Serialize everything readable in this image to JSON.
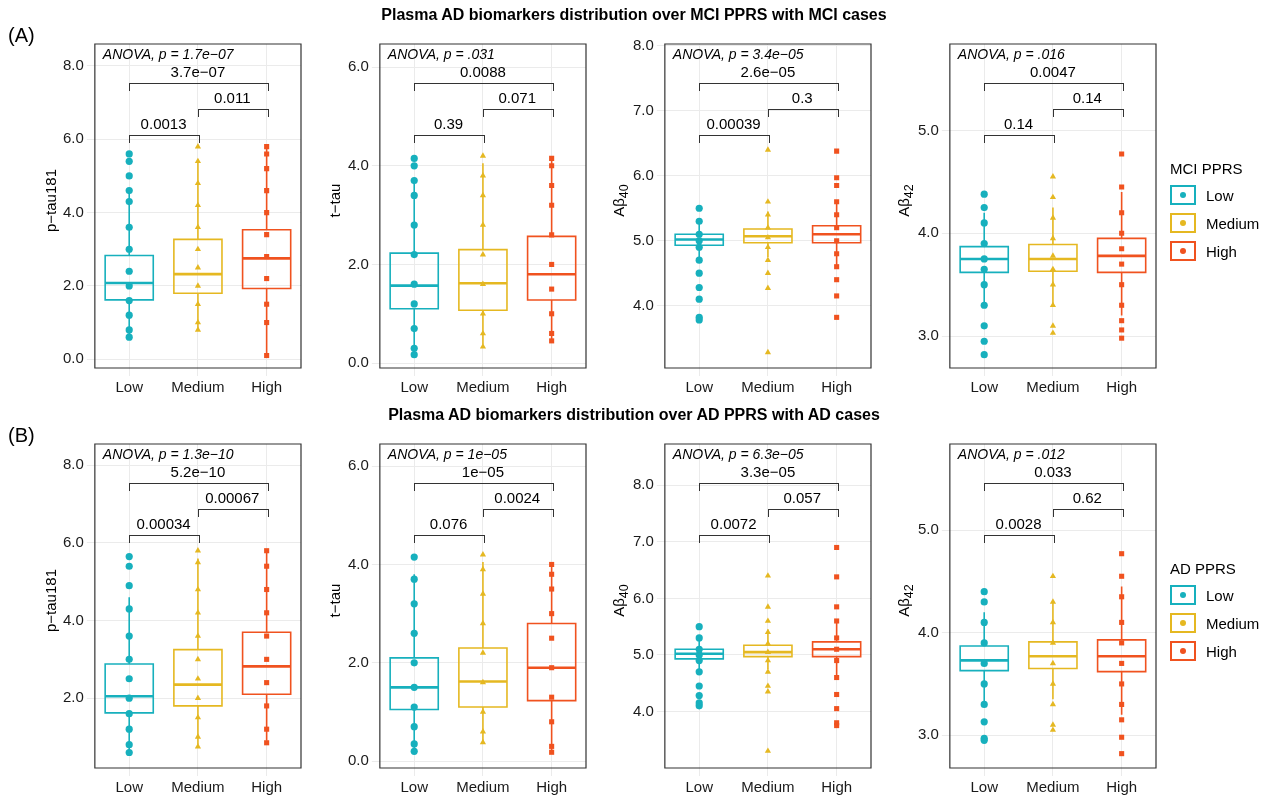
{
  "chart_data": [
    {
      "type": "box",
      "subtitle": "(A)",
      "ylabel": "p−tau181",
      "categories": [
        "Low",
        "Medium",
        "High"
      ],
      "ylim": [
        -0.24,
        8.6
      ],
      "yticks": [
        {
          "value": 0,
          "label": "0.0"
        },
        {
          "value": 2,
          "label": "2.0"
        },
        {
          "value": 4,
          "label": "4.0"
        },
        {
          "value": 6,
          "label": "6.0"
        },
        {
          "value": 8,
          "label": "8.0"
        }
      ],
      "grid": true,
      "colors": [
        "#17b0bd",
        "#e5b821",
        "#f0521f"
      ],
      "boxes": [
        {
          "low": 0.6,
          "q1": 1.62,
          "median": 2.08,
          "q3": 2.83,
          "high": 4.6
        },
        {
          "low": 0.8,
          "q1": 1.8,
          "median": 2.32,
          "q3": 3.27,
          "high": 5.4
        },
        {
          "low": 0.1,
          "q1": 1.93,
          "median": 2.75,
          "q3": 3.53,
          "high": 5.8
        }
      ],
      "series": [
        {
          "type": "scatter",
          "color": "#17b0bd",
          "marker": "circle",
          "x": [
            "Low",
            "Low",
            "Low",
            "Low",
            "Low",
            "Low",
            "Low",
            "Low",
            "Low",
            "Low",
            "Low",
            "Low",
            "Low"
          ],
          "values": [
            0.6,
            0.8,
            1.2,
            1.6,
            2.0,
            2.4,
            3.0,
            3.6,
            4.3,
            4.6,
            5.0,
            5.4,
            5.6
          ]
        },
        {
          "type": "scatter",
          "color": "#e5b821",
          "marker": "triangle",
          "x": [
            "Medium",
            "Medium",
            "Medium",
            "Medium",
            "Medium",
            "Medium",
            "Medium",
            "Medium",
            "Medium",
            "Medium",
            "Medium"
          ],
          "values": [
            0.8,
            1.0,
            1.5,
            2.0,
            2.5,
            3.0,
            3.6,
            4.2,
            4.8,
            5.4,
            5.8
          ]
        },
        {
          "type": "scatter",
          "color": "#f0521f",
          "marker": "square",
          "x": [
            "High",
            "High",
            "High",
            "High",
            "High",
            "High",
            "High",
            "High",
            "High",
            "High",
            "High"
          ],
          "values": [
            0.1,
            1.0,
            1.5,
            2.2,
            2.8,
            3.4,
            4.0,
            4.6,
            5.2,
            5.6,
            5.8
          ]
        }
      ],
      "annotations": [
        "ANOVA, p = 1.7e−07",
        "0.0013",
        "0.011",
        "3.7e−07"
      ]
    },
    {
      "type": "box",
      "ylabel": "t−tau",
      "categories": [
        "Low",
        "Medium",
        "High"
      ],
      "ylim": [
        -0.1,
        6.47
      ],
      "yticks": [
        {
          "value": 0,
          "label": "0.0"
        },
        {
          "value": 2,
          "label": "2.0"
        },
        {
          "value": 4,
          "label": "4.0"
        },
        {
          "value": 6,
          "label": "6.0"
        }
      ],
      "grid": true,
      "colors": [
        "#17b0bd",
        "#e5b821",
        "#f0521f"
      ],
      "boxes": [
        {
          "low": 0.17,
          "q1": 1.1,
          "median": 1.57,
          "q3": 2.23,
          "high": 3.75
        },
        {
          "low": 0.37,
          "q1": 1.07,
          "median": 1.62,
          "q3": 2.3,
          "high": 4.05
        },
        {
          "low": 0.45,
          "q1": 1.28,
          "median": 1.8,
          "q3": 2.57,
          "high": 4.1
        }
      ],
      "series": [
        {
          "type": "scatter",
          "color": "#17b0bd",
          "marker": "circle",
          "x": [
            "Low",
            "Low",
            "Low",
            "Low",
            "Low",
            "Low",
            "Low",
            "Low",
            "Low",
            "Low",
            "Low"
          ],
          "values": [
            0.17,
            0.3,
            0.7,
            1.2,
            1.6,
            2.2,
            2.8,
            3.4,
            3.7,
            4.0,
            4.15
          ]
        },
        {
          "type": "scatter",
          "color": "#e5b821",
          "marker": "triangle",
          "x": [
            "Medium",
            "Medium",
            "Medium",
            "Medium",
            "Medium",
            "Medium",
            "Medium",
            "Medium",
            "Medium"
          ],
          "values": [
            0.33,
            0.6,
            1.0,
            1.6,
            2.2,
            2.8,
            3.4,
            3.8,
            4.2
          ]
        },
        {
          "type": "scatter",
          "color": "#f0521f",
          "marker": "square",
          "x": [
            "High",
            "High",
            "High",
            "High",
            "High",
            "High",
            "High",
            "High",
            "High",
            "High"
          ],
          "values": [
            0.45,
            0.6,
            1.0,
            1.5,
            2.0,
            2.6,
            3.2,
            3.6,
            4.0,
            4.15
          ]
        }
      ],
      "annotations": [
        "ANOVA, p = .031",
        "0.39",
        "0.071",
        "0.0088"
      ]
    },
    {
      "type": "box",
      "title": "Plasma AD biomarkers distribution over MCI PPRS with MCI cases",
      "ylabel": "Aβ$_{40}$",
      "categories": [
        "Low",
        "Medium",
        "High"
      ],
      "ylim": [
        3.04,
        8.03
      ],
      "yticks": [
        {
          "value": 4,
          "label": "4.0"
        },
        {
          "value": 5,
          "label": "5.0"
        },
        {
          "value": 6,
          "label": "6.0"
        },
        {
          "value": 7,
          "label": "7.0"
        },
        {
          "value": 8,
          "label": "8.0"
        }
      ],
      "grid": true,
      "colors": [
        "#17b0bd",
        "#e5b821",
        "#f0521f"
      ],
      "boxes": [
        {
          "low": 4.7,
          "q1": 4.93,
          "median": 5.02,
          "q3": 5.1,
          "high": 5.35
        },
        {
          "low": 4.75,
          "q1": 4.97,
          "median": 5.07,
          "q3": 5.18,
          "high": 5.45
        },
        {
          "low": 4.6,
          "q1": 4.97,
          "median": 5.1,
          "q3": 5.23,
          "high": 5.6
        }
      ],
      "series": [
        {
          "type": "scatter",
          "color": "#17b0bd",
          "marker": "circle",
          "x": [
            "Low",
            "Low",
            "Low",
            "Low",
            "Low",
            "Low",
            "Low",
            "Low",
            "Low",
            "Low",
            "Low"
          ],
          "values": [
            3.78,
            3.82,
            4.1,
            4.28,
            4.5,
            4.7,
            4.9,
            5.0,
            5.1,
            5.3,
            5.5
          ]
        },
        {
          "type": "scatter",
          "color": "#e5b821",
          "marker": "triangle",
          "x": [
            "Medium",
            "Medium",
            "Medium",
            "Medium",
            "Medium",
            "Medium",
            "Medium",
            "Medium",
            "Medium",
            "Medium"
          ],
          "values": [
            3.28,
            4.27,
            4.5,
            4.7,
            4.9,
            5.05,
            5.2,
            5.4,
            5.6,
            6.4
          ]
        },
        {
          "type": "scatter",
          "color": "#f0521f",
          "marker": "square",
          "x": [
            "High",
            "High",
            "High",
            "High",
            "High",
            "High",
            "High",
            "High",
            "High",
            "High",
            "High",
            "High"
          ],
          "values": [
            3.82,
            4.15,
            4.4,
            4.6,
            4.8,
            5.0,
            5.2,
            5.4,
            5.6,
            5.85,
            5.97,
            6.38
          ]
        }
      ],
      "annotations": [
        "ANOVA, p = 3.4e−05",
        "0.00039",
        "0.3",
        "2.6e−05"
      ]
    },
    {
      "type": "box",
      "ylabel": "Aβ$_{42}$",
      "categories": [
        "Low",
        "Medium",
        "High"
      ],
      "ylim": [
        2.69,
        5.84
      ],
      "yticks": [
        {
          "value": 3,
          "label": "3.0"
        },
        {
          "value": 4,
          "label": "4.0"
        },
        {
          "value": 5,
          "label": "5.0"
        }
      ],
      "grid": true,
      "legend": "right",
      "legend_title": "MCI PPRS",
      "colors": [
        "#17b0bd",
        "#e5b821",
        "#f0521f"
      ],
      "boxes": [
        {
          "low": 3.3,
          "q1": 3.62,
          "median": 3.75,
          "q3": 3.87,
          "high": 4.2
        },
        {
          "low": 3.3,
          "q1": 3.63,
          "median": 3.75,
          "q3": 3.89,
          "high": 4.25
        },
        {
          "low": 3.2,
          "q1": 3.62,
          "median": 3.78,
          "q3": 3.95,
          "high": 4.4
        }
      ],
      "series": [
        {
          "type": "scatter",
          "name": "Low",
          "color": "#17b0bd",
          "marker": "circle",
          "x": [
            "Low",
            "Low",
            "Low",
            "Low",
            "Low",
            "Low",
            "Low",
            "Low",
            "Low",
            "Low",
            "Low"
          ],
          "values": [
            2.82,
            2.95,
            3.1,
            3.3,
            3.5,
            3.65,
            3.75,
            3.9,
            4.1,
            4.25,
            4.38
          ]
        },
        {
          "type": "scatter",
          "name": "Medium",
          "color": "#e5b821",
          "marker": "triangle",
          "x": [
            "Medium",
            "Medium",
            "Medium",
            "Medium",
            "Medium",
            "Medium",
            "Medium",
            "Medium",
            "Medium",
            "Medium"
          ],
          "values": [
            3.03,
            3.1,
            3.3,
            3.5,
            3.65,
            3.78,
            3.95,
            4.15,
            4.35,
            4.55
          ]
        },
        {
          "type": "scatter",
          "name": "High",
          "color": "#f0521f",
          "marker": "square",
          "x": [
            "High",
            "High",
            "High",
            "High",
            "High",
            "High",
            "High",
            "High",
            "High",
            "High",
            "High"
          ],
          "values": [
            2.98,
            3.06,
            3.15,
            3.3,
            3.5,
            3.7,
            3.85,
            4.0,
            4.2,
            4.45,
            4.77
          ]
        }
      ],
      "annotations": [
        "ANOVA, p = .016",
        "0.14",
        "0.14",
        "0.0047"
      ]
    },
    {
      "type": "box",
      "subtitle": "(B)",
      "ylabel": "p−tau181",
      "categories": [
        "Low",
        "Medium",
        "High"
      ],
      "ylim": [
        0.2,
        8.55
      ],
      "yticks": [
        {
          "value": 2,
          "label": "2.0"
        },
        {
          "value": 4,
          "label": "4.0"
        },
        {
          "value": 6,
          "label": "6.0"
        },
        {
          "value": 8,
          "label": "8.0"
        }
      ],
      "grid": true,
      "colors": [
        "#17b0bd",
        "#e5b821",
        "#f0521f"
      ],
      "boxes": [
        {
          "low": 0.6,
          "q1": 1.62,
          "median": 2.05,
          "q3": 2.88,
          "high": 4.6
        },
        {
          "low": 0.8,
          "q1": 1.8,
          "median": 2.35,
          "q3": 3.25,
          "high": 5.6
        },
        {
          "low": 0.9,
          "q1": 2.1,
          "median": 2.82,
          "q3": 3.7,
          "high": 5.8
        }
      ],
      "series": [
        {
          "type": "scatter",
          "color": "#17b0bd",
          "marker": "circle",
          "x": [
            "Low",
            "Low",
            "Low",
            "Low",
            "Low",
            "Low",
            "Low",
            "Low",
            "Low",
            "Low",
            "Low",
            "Low"
          ],
          "values": [
            0.6,
            0.8,
            1.2,
            1.6,
            2.0,
            2.5,
            3.0,
            3.6,
            4.3,
            4.9,
            5.4,
            5.65
          ]
        },
        {
          "type": "scatter",
          "color": "#e5b821",
          "marker": "triangle",
          "x": [
            "Medium",
            "Medium",
            "Medium",
            "Medium",
            "Medium",
            "Medium",
            "Medium",
            "Medium",
            "Medium",
            "Medium",
            "Medium"
          ],
          "values": [
            0.75,
            1.0,
            1.5,
            2.0,
            2.5,
            3.0,
            3.6,
            4.2,
            4.8,
            5.5,
            5.8
          ]
        },
        {
          "type": "scatter",
          "color": "#f0521f",
          "marker": "square",
          "x": [
            "High",
            "High",
            "High",
            "High",
            "High",
            "High",
            "High",
            "High",
            "High",
            "High"
          ],
          "values": [
            0.85,
            1.2,
            1.8,
            2.4,
            3.0,
            3.6,
            4.2,
            4.8,
            5.4,
            5.8
          ]
        }
      ],
      "annotations": [
        "ANOVA, p = 1.3e−10",
        "0.00034",
        "0.00067",
        "5.2e−10"
      ]
    },
    {
      "type": "box",
      "ylabel": "t−tau",
      "categories": [
        "Low",
        "Medium",
        "High"
      ],
      "ylim": [
        -0.14,
        6.45
      ],
      "yticks": [
        {
          "value": 0,
          "label": "0.0"
        },
        {
          "value": 2,
          "label": "2.0"
        },
        {
          "value": 4,
          "label": "4.0"
        },
        {
          "value": 6,
          "label": "6.0"
        }
      ],
      "grid": true,
      "colors": [
        "#17b0bd",
        "#e5b821",
        "#f0521f"
      ],
      "boxes": [
        {
          "low": 0.2,
          "q1": 1.05,
          "median": 1.5,
          "q3": 2.1,
          "high": 3.8
        },
        {
          "low": 0.4,
          "q1": 1.1,
          "median": 1.62,
          "q3": 2.3,
          "high": 4.05
        },
        {
          "low": 0.2,
          "q1": 1.23,
          "median": 1.9,
          "q3": 2.8,
          "high": 4.0
        }
      ],
      "series": [
        {
          "type": "scatter",
          "color": "#17b0bd",
          "marker": "circle",
          "x": [
            "Low",
            "Low",
            "Low",
            "Low",
            "Low",
            "Low",
            "Low",
            "Low",
            "Low",
            "Low"
          ],
          "values": [
            0.2,
            0.35,
            0.7,
            1.1,
            1.5,
            2.0,
            2.6,
            3.2,
            3.7,
            4.15
          ]
        },
        {
          "type": "scatter",
          "color": "#e5b821",
          "marker": "triangle",
          "x": [
            "Medium",
            "Medium",
            "Medium",
            "Medium",
            "Medium",
            "Medium",
            "Medium",
            "Medium",
            "Medium"
          ],
          "values": [
            0.38,
            0.6,
            1.0,
            1.6,
            2.2,
            2.8,
            3.4,
            3.9,
            4.2
          ]
        },
        {
          "type": "scatter",
          "color": "#f0521f",
          "marker": "square",
          "x": [
            "High",
            "High",
            "High",
            "High",
            "High",
            "High",
            "High",
            "High",
            "High",
            "High"
          ],
          "values": [
            0.18,
            0.3,
            0.8,
            1.3,
            1.9,
            2.5,
            3.0,
            3.5,
            3.8,
            4.0
          ]
        }
      ],
      "annotations": [
        "ANOVA, p = 1e−05",
        "0.076",
        "0.0024",
        "1e−05"
      ]
    },
    {
      "type": "box",
      "title": "Plasma AD biomarkers distribution over AD PPRS with AD cases",
      "ylabel": "Aβ$_{40}$",
      "categories": [
        "Low",
        "Medium",
        "High"
      ],
      "ylim": [
        3.0,
        8.73
      ],
      "yticks": [
        {
          "value": 4,
          "label": "4.0"
        },
        {
          "value": 5,
          "label": "5.0"
        },
        {
          "value": 6,
          "label": "6.0"
        },
        {
          "value": 7,
          "label": "7.0"
        },
        {
          "value": 8,
          "label": "8.0"
        }
      ],
      "grid": true,
      "colors": [
        "#17b0bd",
        "#e5b821",
        "#f0521f"
      ],
      "boxes": [
        {
          "low": 4.75,
          "q1": 4.93,
          "median": 5.02,
          "q3": 5.1,
          "high": 5.35
        },
        {
          "low": 4.75,
          "q1": 4.97,
          "median": 5.05,
          "q3": 5.17,
          "high": 5.45
        },
        {
          "low": 4.6,
          "q1": 4.97,
          "median": 5.1,
          "q3": 5.23,
          "high": 5.6
        }
      ],
      "series": [
        {
          "type": "scatter",
          "color": "#17b0bd",
          "marker": "circle",
          "x": [
            "Low",
            "Low",
            "Low",
            "Low",
            "Low",
            "Low",
            "Low",
            "Low",
            "Low",
            "Low"
          ],
          "values": [
            4.1,
            4.15,
            4.28,
            4.45,
            4.7,
            4.9,
            5.0,
            5.1,
            5.3,
            5.5
          ]
        },
        {
          "type": "scatter",
          "color": "#e5b821",
          "marker": "triangle",
          "x": [
            "Medium",
            "Medium",
            "Medium",
            "Medium",
            "Medium",
            "Medium",
            "Medium",
            "Medium",
            "Medium",
            "Medium",
            "Medium"
          ],
          "values": [
            3.3,
            4.35,
            4.45,
            4.7,
            4.9,
            5.05,
            5.2,
            5.4,
            5.6,
            5.85,
            6.4
          ]
        },
        {
          "type": "scatter",
          "color": "#f0521f",
          "marker": "square",
          "x": [
            "High",
            "High",
            "High",
            "High",
            "High",
            "High",
            "High",
            "High",
            "High",
            "High",
            "High",
            "High"
          ],
          "values": [
            3.75,
            3.8,
            4.05,
            4.3,
            4.6,
            4.9,
            5.1,
            5.3,
            5.6,
            5.85,
            6.38,
            6.9
          ]
        }
      ],
      "annotations": [
        "ANOVA, p = 6.3e−05",
        "0.0072",
        "0.057",
        "3.3e−05"
      ]
    },
    {
      "type": "box",
      "ylabel": "Aβ$_{42}$",
      "categories": [
        "Low",
        "Medium",
        "High"
      ],
      "ylim": [
        2.68,
        5.84
      ],
      "yticks": [
        {
          "value": 3,
          "label": "3.0"
        },
        {
          "value": 4,
          "label": "4.0"
        },
        {
          "value": 5,
          "label": "5.0"
        }
      ],
      "grid": true,
      "legend": "right",
      "legend_title": "AD PPRS",
      "colors": [
        "#17b0bd",
        "#e5b821",
        "#f0521f"
      ],
      "boxes": [
        {
          "low": 3.3,
          "q1": 3.63,
          "median": 3.73,
          "q3": 3.87,
          "high": 4.2
        },
        {
          "low": 3.35,
          "q1": 3.65,
          "median": 3.77,
          "q3": 3.91,
          "high": 4.3
        },
        {
          "low": 3.2,
          "q1": 3.62,
          "median": 3.77,
          "q3": 3.93,
          "high": 4.45
        }
      ],
      "series": [
        {
          "type": "scatter",
          "name": "Low",
          "color": "#17b0bd",
          "marker": "circle",
          "x": [
            "Low",
            "Low",
            "Low",
            "Low",
            "Low",
            "Low",
            "Low",
            "Low",
            "Low",
            "Low"
          ],
          "values": [
            2.95,
            2.97,
            3.13,
            3.3,
            3.5,
            3.7,
            3.9,
            4.1,
            4.3,
            4.4
          ]
        },
        {
          "type": "scatter",
          "name": "Medium",
          "color": "#e5b821",
          "marker": "triangle",
          "x": [
            "Medium",
            "Medium",
            "Medium",
            "Medium",
            "Medium",
            "Medium",
            "Medium",
            "Medium",
            "Medium"
          ],
          "values": [
            3.05,
            3.1,
            3.3,
            3.5,
            3.7,
            3.9,
            4.1,
            4.3,
            4.55
          ]
        },
        {
          "type": "scatter",
          "name": "High",
          "color": "#f0521f",
          "marker": "square",
          "x": [
            "High",
            "High",
            "High",
            "High",
            "High",
            "High",
            "High",
            "High",
            "High",
            "High",
            "High"
          ],
          "values": [
            2.82,
            2.98,
            3.15,
            3.3,
            3.5,
            3.7,
            3.9,
            4.1,
            4.35,
            4.55,
            4.77
          ]
        }
      ],
      "annotations": [
        "ANOVA, p = .012",
        "0.0028",
        "0.62",
        "0.033"
      ]
    }
  ]
}
